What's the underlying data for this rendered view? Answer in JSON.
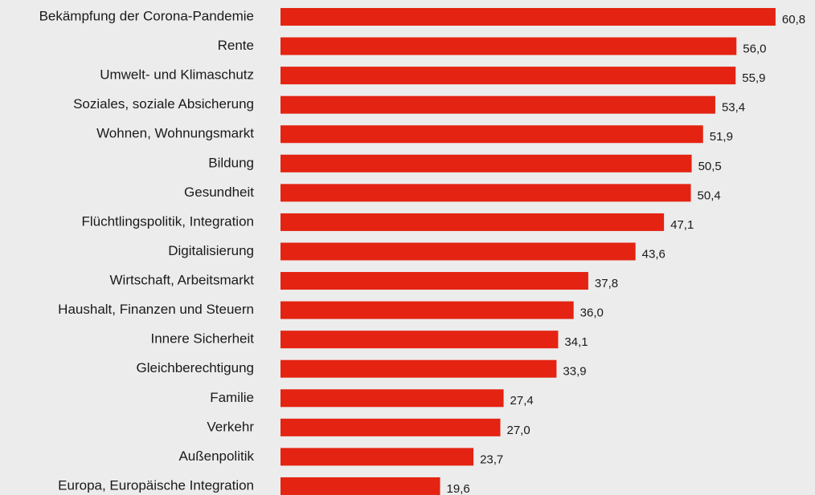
{
  "chart_data": {
    "type": "bar",
    "orientation": "horizontal",
    "color": "#e42312",
    "categories": [
      "Bekämpfung der Corona-Pandemie",
      "Rente",
      "Umwelt- und Klimaschutz",
      "Soziales, soziale Absicherung",
      "Wohnen, Wohnungsmarkt",
      "Bildung",
      "Gesundheit",
      "Flüchtlingspolitik, Integration",
      "Digitalisierung",
      "Wirtschaft, Arbeitsmarkt",
      "Haushalt, Finanzen und Steuern",
      "Innere Sicherheit",
      "Gleichberechtigung",
      "Familie",
      "Verkehr",
      "Außenpolitik",
      "Europa, Europäische Integration"
    ],
    "values": [
      60.8,
      56.0,
      55.9,
      53.4,
      51.9,
      50.5,
      50.4,
      47.1,
      43.6,
      37.8,
      36.0,
      34.1,
      33.9,
      27.4,
      27.0,
      23.7,
      19.6
    ],
    "value_labels": [
      "60,8",
      "56,0",
      "55,9",
      "53,4",
      "51,9",
      "50,5",
      "50,4",
      "47,1",
      "43,6",
      "37,8",
      "36,0",
      "34,1",
      "33,9",
      "27,4",
      "27,0",
      "23,7",
      "19,6"
    ]
  }
}
